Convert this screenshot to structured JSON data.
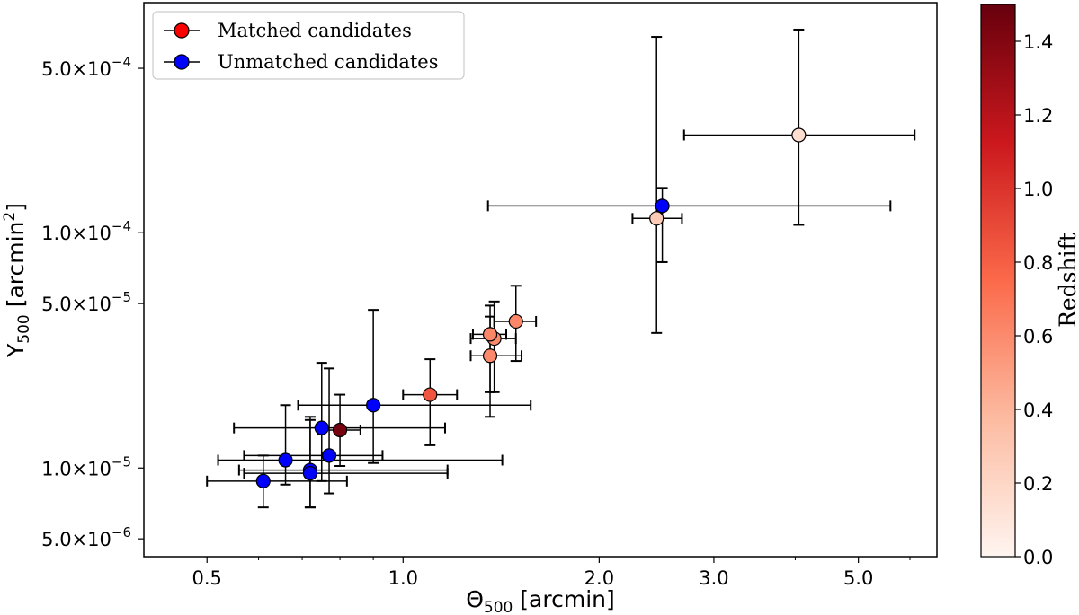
{
  "chart_data": {
    "type": "scatter",
    "xscale": "log",
    "yscale": "log",
    "xlim": [
      0.4,
      6.6
    ],
    "ylim": [
      4.2e-06,
      0.00095
    ],
    "xlabel": "Θ500 [arcmin]",
    "ylabel": "Y500 [arcmin2]",
    "xlabel_parts": {
      "base": "Θ",
      "sub": "500",
      "rest": " [arcmin]"
    },
    "ylabel_parts": {
      "base": "Y",
      "sub": "500",
      "mid": " [arcmin",
      "sup": "2",
      "end": "]"
    },
    "x_ticks": [
      {
        "value": 0.5,
        "label": "0.5"
      },
      {
        "value": 1.0,
        "label": "1.0"
      },
      {
        "value": 2.0,
        "label": "2.0"
      },
      {
        "value": 3.0,
        "label": "3.0"
      },
      {
        "value": 5.0,
        "label": "5.0"
      }
    ],
    "y_ticks": [
      {
        "value": 5e-06,
        "mant": "5.0×10",
        "exp": "−6"
      },
      {
        "value": 1e-05,
        "mant": "1.0×10",
        "exp": "−5"
      },
      {
        "value": 5e-05,
        "mant": "5.0×10",
        "exp": "−5"
      },
      {
        "value": 0.0001,
        "mant": "1.0×10",
        "exp": "−4"
      },
      {
        "value": 0.0005,
        "mant": "5.0×10",
        "exp": "−4"
      }
    ],
    "colorbar": {
      "label": "Redshift",
      "range": [
        0.0,
        1.5
      ],
      "colors": [
        "#fff5f0",
        "#fcbba1",
        "#fb6a4a",
        "#cb181d",
        "#67000d"
      ],
      "ticks": [
        {
          "value": 0.0,
          "label": "0.0"
        },
        {
          "value": 0.2,
          "label": "0.2"
        },
        {
          "value": 0.4,
          "label": "0.4"
        },
        {
          "value": 0.6,
          "label": "0.6"
        },
        {
          "value": 0.8,
          "label": "0.8"
        },
        {
          "value": 1.0,
          "label": "1.0"
        },
        {
          "value": 1.2,
          "label": "1.2"
        },
        {
          "value": 1.4,
          "label": "1.4"
        }
      ]
    },
    "legend": {
      "position": "top-left",
      "entries": [
        {
          "label": "Matched candidates",
          "color": "#ff0000"
        },
        {
          "label": "Unmatched candidates",
          "color": "#0000ff"
        }
      ]
    },
    "unmatched_color": "#0000ff",
    "series": [
      {
        "name": "Matched candidates",
        "points": [
          {
            "x": 4.05,
            "y": 0.00026,
            "xerr": [
              2.7,
              6.1
            ],
            "yerr": [
              0.000108,
              0.00073
            ],
            "z": 0.15
          },
          {
            "x": 2.45,
            "y": 0.000115,
            "xerr": [
              2.25,
              2.68
            ],
            "yerr": [
              3.75e-05,
              0.00068
            ],
            "z": 0.28
          },
          {
            "x": 1.49,
            "y": 4.2e-05,
            "xerr": [
              1.38,
              1.6
            ],
            "yerr": [
              2.85e-05,
              5.95e-05
            ],
            "z": 0.62
          },
          {
            "x": 1.38,
            "y": 3.55e-05,
            "xerr": [
              1.27,
              1.49
            ],
            "yerr": [
              2.1e-05,
              5.1e-05
            ],
            "z": 0.6
          },
          {
            "x": 1.36,
            "y": 3.7e-05,
            "xerr": [
              1.28,
              1.44
            ],
            "yerr": [
              2.1e-05,
              4.9e-05
            ],
            "z": 0.62
          },
          {
            "x": 1.36,
            "y": 3e-05,
            "xerr": [
              1.27,
              1.52
            ],
            "yerr": [
              1.65e-05,
              4.4e-05
            ],
            "z": 0.6
          },
          {
            "x": 1.1,
            "y": 2.05e-05,
            "xerr": [
              1.0,
              1.21
            ],
            "yerr": [
              1.25e-05,
              2.9e-05
            ],
            "z": 0.85
          },
          {
            "x": 0.8,
            "y": 1.45e-05,
            "xerr": [
              0.74,
              0.86
            ],
            "yerr": [
              1.02e-05,
              2.05e-05
            ],
            "z": 1.45
          }
        ]
      },
      {
        "name": "Unmatched candidates",
        "points": [
          {
            "x": 2.5,
            "y": 0.00013,
            "xerr": [
              1.35,
              5.6
            ],
            "yerr": [
              7.5e-05,
              0.000155
            ]
          },
          {
            "x": 0.9,
            "y": 1.85e-05,
            "xerr": [
              0.69,
              1.57
            ],
            "yerr": [
              1.05e-05,
              4.7e-05
            ]
          },
          {
            "x": 0.75,
            "y": 1.48e-05,
            "xerr": [
              0.55,
              1.16
            ],
            "yerr": [
              8.8e-06,
              2.8e-05
            ]
          },
          {
            "x": 0.77,
            "y": 1.13e-05,
            "xerr": [
              0.57,
              0.93
            ],
            "yerr": [
              7.8e-06,
              2.65e-05
            ]
          },
          {
            "x": 0.66,
            "y": 1.08e-05,
            "xerr": [
              0.52,
              1.42
            ],
            "yerr": [
              8.5e-06,
              1.85e-05
            ]
          },
          {
            "x": 0.72,
            "y": 9.8e-06,
            "xerr": [
              0.56,
              1.17
            ],
            "yerr": [
              6.8e-06,
              1.65e-05
            ]
          },
          {
            "x": 0.72,
            "y": 9.5e-06,
            "xerr": [
              0.57,
              1.17
            ],
            "yerr": [
              6.8e-06,
              1.6e-05
            ]
          },
          {
            "x": 0.61,
            "y": 8.8e-06,
            "xerr": [
              0.5,
              0.82
            ],
            "yerr": [
              6.8e-06,
              1.13e-05
            ]
          }
        ]
      }
    ]
  }
}
